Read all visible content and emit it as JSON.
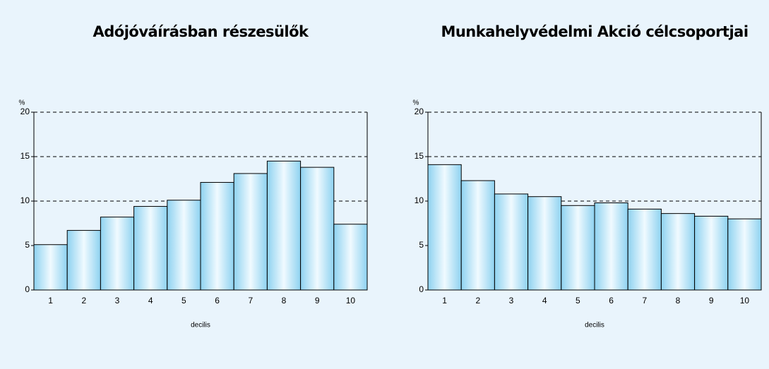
{
  "chart_data": [
    {
      "type": "bar",
      "title": "Adójóváírásban részesülők",
      "y_label": "%",
      "x_label": "decilis",
      "categories": [
        "1",
        "2",
        "3",
        "4",
        "5",
        "6",
        "7",
        "8",
        "9",
        "10"
      ],
      "values": [
        5.1,
        6.7,
        8.2,
        9.4,
        10.1,
        12.1,
        13.1,
        14.5,
        13.8,
        7.4
      ],
      "color": "#8ed2f0",
      "ylim": [
        0,
        20
      ],
      "yticks": [
        0,
        5,
        10,
        15,
        20
      ],
      "grid": true
    },
    {
      "type": "bar",
      "title": "Munkahelyvédelmi Akció célcsoportjai",
      "y_label": "%",
      "x_label": "decilis",
      "categories": [
        "1",
        "2",
        "3",
        "4",
        "5",
        "6",
        "7",
        "8",
        "9",
        "10"
      ],
      "values": [
        14.1,
        12.3,
        10.8,
        10.5,
        9.5,
        9.8,
        9.1,
        8.6,
        8.3,
        8.0
      ],
      "color": "#8ed2f0",
      "ylim": [
        0,
        20
      ],
      "yticks": [
        0,
        5,
        10,
        15,
        20
      ],
      "grid": true
    }
  ]
}
